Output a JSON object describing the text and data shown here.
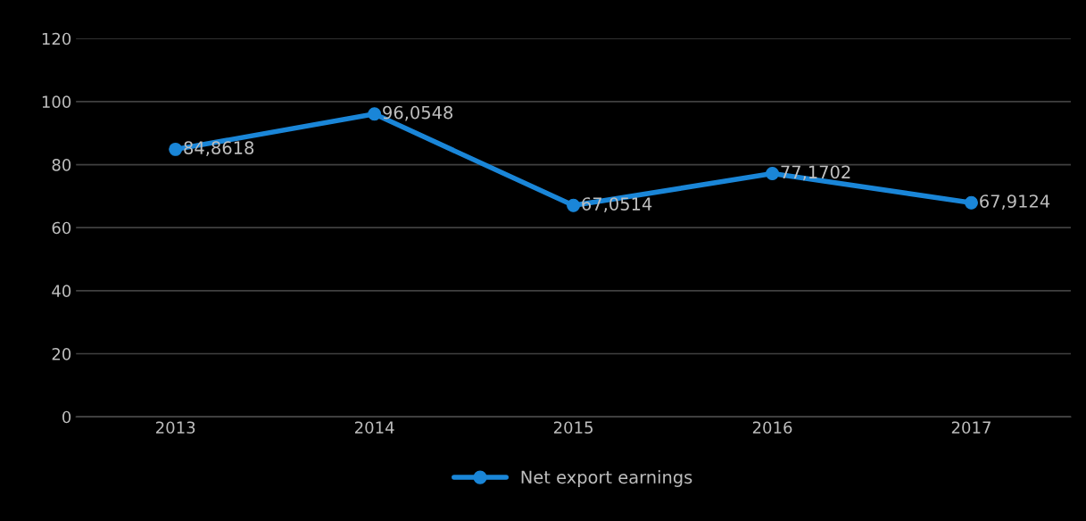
{
  "chart_data": {
    "type": "line",
    "categories": [
      "2013",
      "2014",
      "2015",
      "2016",
      "2017"
    ],
    "series": [
      {
        "name": "Net export earnings",
        "color": "#1a86d8",
        "values": [
          84.8618,
          96.0548,
          67.0514,
          77.1702,
          67.9124
        ],
        "value_labels": [
          "84,8618",
          "96,0548",
          "67,0514",
          "77,1702",
          "67,9124"
        ]
      }
    ],
    "ylim": [
      0,
      120
    ],
    "yticks": [
      0,
      20,
      40,
      60,
      80,
      100,
      120
    ],
    "grid": "y",
    "legend": "bottom",
    "marker": "circle",
    "line_style": "solid"
  }
}
